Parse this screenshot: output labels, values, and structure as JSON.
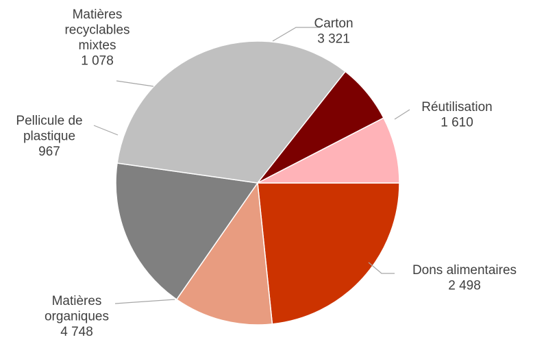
{
  "chart_data": {
    "type": "pie",
    "title": "",
    "legend": "none",
    "slices": [
      {
        "label": [
          "Carton"
        ],
        "value_text": "3 321",
        "value": 3321,
        "color": "#cc3300"
      },
      {
        "label": [
          "Réutilisation"
        ],
        "value_text": "1 610",
        "value": 1610,
        "color": "#e89c80"
      },
      {
        "label": [
          "Dons alimentaires"
        ],
        "value_text": "2 498",
        "value": 2498,
        "color": "#808080"
      },
      {
        "label": [
          "Matières",
          "organiques"
        ],
        "value_text": "4 748",
        "value": 4748,
        "color": "#c0c0c0"
      },
      {
        "label": [
          "Pellicule de",
          "plastique"
        ],
        "value_text": "967",
        "value": 967,
        "color": "#7b0000"
      },
      {
        "label": [
          "Matières",
          "recyclables",
          "mixtes"
        ],
        "value_text": "1 078",
        "value": 1078,
        "color": "#ffb3b8"
      }
    ]
  }
}
